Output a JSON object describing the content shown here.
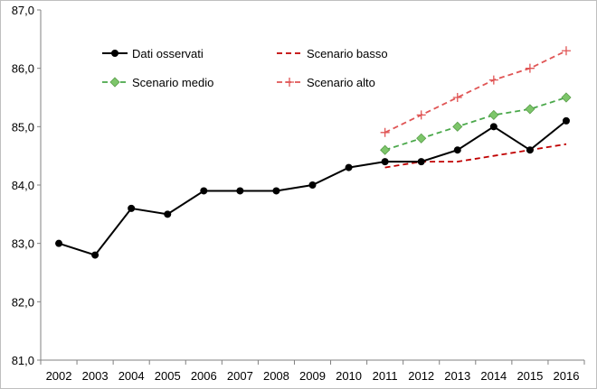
{
  "chart_data": {
    "type": "line",
    "title": "",
    "xlabel": "",
    "ylabel": "",
    "categories": [
      "2002",
      "2003",
      "2004",
      "2005",
      "2006",
      "2007",
      "2008",
      "2009",
      "2010",
      "2011",
      "2012",
      "2013",
      "2014",
      "2015",
      "2016"
    ],
    "ylim": [
      81.0,
      87.0
    ],
    "yticks": [
      "81,0",
      "82,0",
      "83,0",
      "84,0",
      "85,0",
      "86,0",
      "87,0"
    ],
    "grid": false,
    "legend_position": "top-left inside",
    "series": [
      {
        "name": "Dati osservati",
        "style": "solid",
        "marker": "circle",
        "color": "#000000",
        "values": [
          83.0,
          82.8,
          83.6,
          83.5,
          83.9,
          83.9,
          83.9,
          84.0,
          84.3,
          84.4,
          84.4,
          84.6,
          85.0,
          84.6,
          85.1
        ]
      },
      {
        "name": "Scenario basso",
        "style": "dashed",
        "marker": "none",
        "color": "#c00000",
        "values": [
          null,
          null,
          null,
          null,
          null,
          null,
          null,
          null,
          null,
          84.3,
          84.4,
          84.4,
          84.5,
          84.6,
          84.7
        ]
      },
      {
        "name": "Scenario medio",
        "style": "dashed",
        "marker": "diamond",
        "color": "#7dc66a",
        "line_color": "#4aa84a",
        "values": [
          null,
          null,
          null,
          null,
          null,
          null,
          null,
          null,
          null,
          84.6,
          84.8,
          85.0,
          85.2,
          85.3,
          85.5
        ]
      },
      {
        "name": "Scenario alto",
        "style": "dashed",
        "marker": "plus",
        "color": "#e05555",
        "values": [
          null,
          null,
          null,
          null,
          null,
          null,
          null,
          null,
          null,
          84.9,
          85.2,
          85.5,
          85.8,
          86.0,
          86.3
        ]
      }
    ]
  }
}
